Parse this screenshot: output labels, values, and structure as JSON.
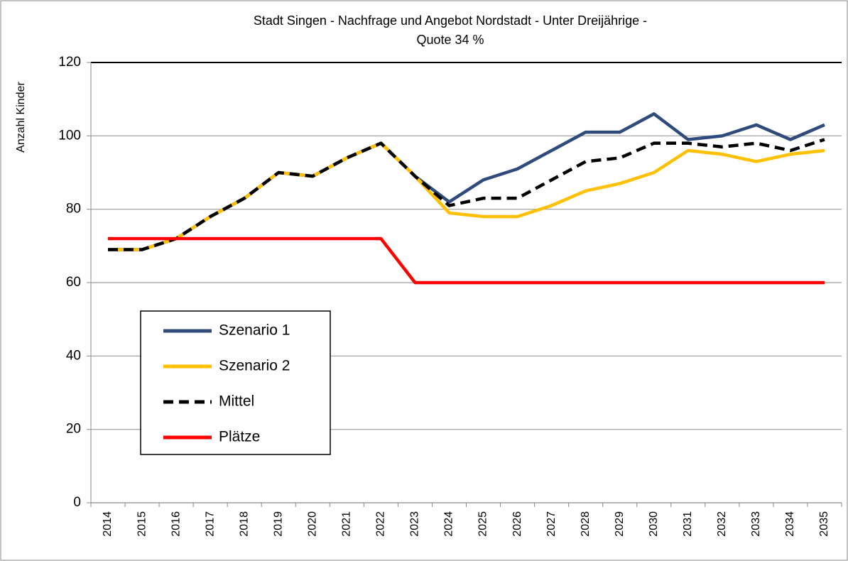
{
  "chart_data": {
    "type": "line",
    "title": [
      "Stadt Singen - Nachfrage und Angebot Nordstadt - Unter Dreijährige -",
      "Quote 34 %"
    ],
    "y_label": "Anzahl Kinder",
    "categories": [
      "2014",
      "2015",
      "2016",
      "2017",
      "2018",
      "2019",
      "2020",
      "2021",
      "2022",
      "2023",
      "2024",
      "2025",
      "2026",
      "2027",
      "2028",
      "2029",
      "2030",
      "2031",
      "2032",
      "2033",
      "2034",
      "2035"
    ],
    "series": [
      {
        "name": "Szenario 1",
        "color": "#2f4b7c",
        "dashed": false,
        "values": [
          69,
          69,
          72,
          78,
          83,
          90,
          89,
          94,
          98,
          89,
          82,
          88,
          91,
          96,
          101,
          101,
          106,
          99,
          100,
          103,
          99,
          103
        ]
      },
      {
        "name": "Szenario 2",
        "color": "#ffc000",
        "dashed": false,
        "values": [
          69,
          69,
          72,
          78,
          83,
          90,
          89,
          94,
          98,
          89,
          79,
          78,
          78,
          81,
          85,
          87,
          90,
          96,
          95,
          93,
          95,
          96
        ]
      },
      {
        "name": "Mittel",
        "color": "#000000",
        "dashed": true,
        "values": [
          69,
          69,
          72,
          78,
          83,
          90,
          89,
          94,
          98,
          89,
          81,
          83,
          83,
          88,
          93,
          94,
          98,
          98,
          97,
          98,
          96,
          99
        ]
      },
      {
        "name": "Plätze",
        "color": "#ff0000",
        "dashed": false,
        "values": [
          72,
          72,
          72,
          72,
          72,
          72,
          72,
          72,
          72,
          60,
          60,
          60,
          60,
          60,
          60,
          60,
          60,
          60,
          60,
          60,
          60,
          60
        ]
      }
    ],
    "ylim": [
      0,
      120
    ],
    "yticks": [
      0,
      20,
      40,
      60,
      80,
      100,
      120
    ],
    "grid": true,
    "legend": "lower left"
  }
}
